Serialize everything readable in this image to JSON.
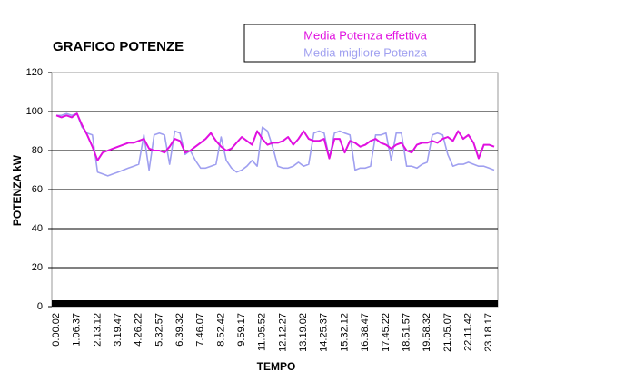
{
  "chart_data": {
    "type": "line",
    "title": "GRAFICO POTENZE",
    "xlabel": "TEMPO",
    "ylabel": "POTENZA kW",
    "categories": [
      "0.00.02",
      null,
      null,
      null,
      "1.06.37",
      null,
      null,
      null,
      "2.13.12",
      null,
      null,
      null,
      "3.19.47",
      null,
      null,
      null,
      "4.26.22",
      null,
      null,
      null,
      "5.32.57",
      null,
      null,
      null,
      "6.39.32",
      null,
      null,
      null,
      "7.46.07",
      null,
      null,
      null,
      "8.52.42",
      null,
      null,
      null,
      "9.59.17",
      null,
      null,
      null,
      "11.05.52",
      null,
      null,
      null,
      "12.12.27",
      null,
      null,
      null,
      "13.19.02",
      null,
      null,
      null,
      "14.25.37",
      null,
      null,
      null,
      "15.32.12",
      null,
      null,
      null,
      "16.38.47",
      null,
      null,
      null,
      "17.45.22",
      null,
      null,
      null,
      "18.51.57",
      null,
      null,
      null,
      "19.58.32",
      null,
      null,
      null,
      "21.05.07",
      null,
      null,
      null,
      "22.11.42",
      null,
      null,
      null,
      "23.18.17",
      null
    ],
    "series": [
      {
        "name": "Media Potenza effettiva",
        "color": "#e010e0",
        "values": [
          98,
          97,
          98,
          97,
          99,
          93,
          88,
          82,
          75,
          79,
          80,
          81,
          82,
          83,
          84,
          84,
          85,
          86,
          81,
          80,
          80,
          79,
          82,
          86,
          85,
          79,
          80,
          82,
          84,
          86,
          89,
          85,
          82,
          80,
          81,
          84,
          87,
          85,
          83,
          90,
          86,
          83,
          84,
          84,
          85,
          87,
          83,
          86,
          90,
          86,
          85,
          85,
          86,
          76,
          86,
          86,
          79,
          85,
          84,
          82,
          83,
          85,
          86,
          84,
          83,
          81,
          83,
          84,
          80,
          79,
          83,
          84,
          84,
          85,
          84,
          86,
          87,
          85,
          90,
          86,
          88,
          84,
          76,
          83,
          83,
          82
        ]
      },
      {
        "name": "Media migliore Potenza",
        "color": "#a0a0f0",
        "values": [
          98,
          98,
          99,
          98,
          99,
          92,
          89,
          88,
          69,
          68,
          67,
          68,
          69,
          70,
          71,
          72,
          73,
          88,
          70,
          88,
          89,
          88,
          73,
          90,
          89,
          78,
          80,
          75,
          71,
          71,
          72,
          73,
          87,
          75,
          71,
          69,
          70,
          72,
          75,
          72,
          92,
          90,
          82,
          72,
          71,
          71,
          72,
          74,
          72,
          73,
          89,
          90,
          89,
          76,
          89,
          90,
          89,
          88,
          70,
          71,
          71,
          72,
          88,
          88,
          89,
          75,
          89,
          89,
          72,
          72,
          71,
          73,
          74,
          88,
          89,
          88,
          78,
          72,
          73,
          73,
          74,
          73,
          72,
          72,
          71,
          70
        ]
      }
    ],
    "ylim": [
      0,
      120
    ],
    "yticks": [
      0,
      20,
      40,
      60,
      80,
      100,
      120
    ],
    "grid": true,
    "legend": "top"
  }
}
